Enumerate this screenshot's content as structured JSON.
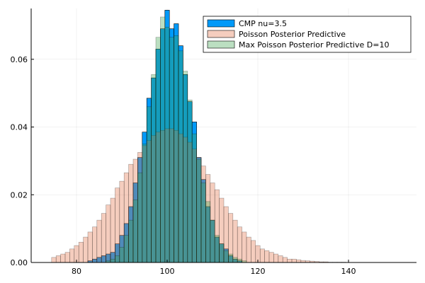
{
  "chart_data": {
    "type": "bar",
    "title": "",
    "xlabel": "",
    "ylabel": "",
    "xlim": [
      70,
      155
    ],
    "ylim": [
      0,
      0.075
    ],
    "grid": true,
    "legend_position": "top-right",
    "bin_width": 1,
    "x_ticks": [
      80,
      100,
      120,
      140
    ],
    "x_tick_labels": [
      "80",
      "100",
      "120",
      "140"
    ],
    "y_ticks": [
      0.0,
      0.02,
      0.04,
      0.06
    ],
    "y_tick_labels": [
      "0.00",
      "0.02",
      "0.04",
      "0.06"
    ],
    "x": [
      75,
      76,
      77,
      78,
      79,
      80,
      81,
      82,
      83,
      84,
      85,
      86,
      87,
      88,
      89,
      90,
      91,
      92,
      93,
      94,
      95,
      96,
      97,
      98,
      99,
      100,
      101,
      102,
      103,
      104,
      105,
      106,
      107,
      108,
      109,
      110,
      111,
      112,
      113,
      114,
      115,
      116,
      117,
      118,
      119,
      120,
      121,
      122,
      123,
      124,
      125,
      126,
      127,
      128,
      129,
      130,
      131,
      132,
      133,
      134,
      135,
      136,
      137,
      138,
      139,
      140
    ],
    "series": [
      {
        "name": "CMP nu=3.5",
        "color": "#009af9",
        "opacity": 1.0,
        "values": [
          0,
          0,
          0,
          0,
          0,
          0,
          0,
          0,
          0.0005,
          0.001,
          0.0015,
          0.002,
          0.0025,
          0.003,
          0.0055,
          0.008,
          0.0115,
          0.0165,
          0.0235,
          0.031,
          0.0385,
          0.0485,
          0.0545,
          0.063,
          0.069,
          0.0745,
          0.069,
          0.0705,
          0.064,
          0.0555,
          0.0475,
          0.0415,
          0.031,
          0.0245,
          0.0165,
          0.0125,
          0.0075,
          0.0055,
          0.004,
          0.002,
          0.001,
          0.0005,
          0,
          0,
          0,
          0,
          0,
          0,
          0,
          0,
          0,
          0,
          0,
          0,
          0,
          0,
          0,
          0,
          0,
          0,
          0,
          0,
          0,
          0,
          0,
          0
        ]
      },
      {
        "name": "Poisson Posterior Predictive",
        "color": "#e26f46",
        "opacity": 0.35,
        "values": [
          0.0015,
          0.002,
          0.0025,
          0.003,
          0.004,
          0.005,
          0.006,
          0.0075,
          0.009,
          0.0105,
          0.0125,
          0.0145,
          0.017,
          0.019,
          0.022,
          0.024,
          0.0265,
          0.029,
          0.0305,
          0.0325,
          0.0345,
          0.036,
          0.0375,
          0.0385,
          0.039,
          0.0395,
          0.0395,
          0.039,
          0.038,
          0.037,
          0.0355,
          0.0335,
          0.031,
          0.0285,
          0.026,
          0.0235,
          0.0215,
          0.019,
          0.0165,
          0.0145,
          0.0125,
          0.0105,
          0.009,
          0.0075,
          0.0065,
          0.005,
          0.004,
          0.0035,
          0.003,
          0.0025,
          0.002,
          0.0015,
          0.001,
          0.001,
          0.0008,
          0.0006,
          0.0005,
          0.0004,
          0.0003,
          0.0002,
          0.0002,
          0.0001,
          0.0001,
          0.0001,
          0.0001,
          0
        ]
      },
      {
        "name": "Max Poisson Posterior Predictive D=10",
        "color": "#3da44d",
        "opacity": 0.35,
        "values": [
          0,
          0,
          0,
          0,
          0,
          0,
          0,
          0,
          0,
          0,
          0,
          0,
          0.0005,
          0.001,
          0.002,
          0.0045,
          0.008,
          0.0125,
          0.0185,
          0.0265,
          0.035,
          0.046,
          0.0555,
          0.0665,
          0.0725,
          0.0695,
          0.0665,
          0.067,
          0.0625,
          0.0565,
          0.048,
          0.038,
          0.0305,
          0.0235,
          0.018,
          0.0125,
          0.008,
          0.0055,
          0.0035,
          0.0025,
          0.0015,
          0.001,
          0.0005,
          0,
          0,
          0,
          0,
          0,
          0,
          0,
          0,
          0,
          0,
          0,
          0,
          0,
          0,
          0,
          0,
          0,
          0,
          0,
          0,
          0,
          0,
          0
        ]
      }
    ]
  }
}
